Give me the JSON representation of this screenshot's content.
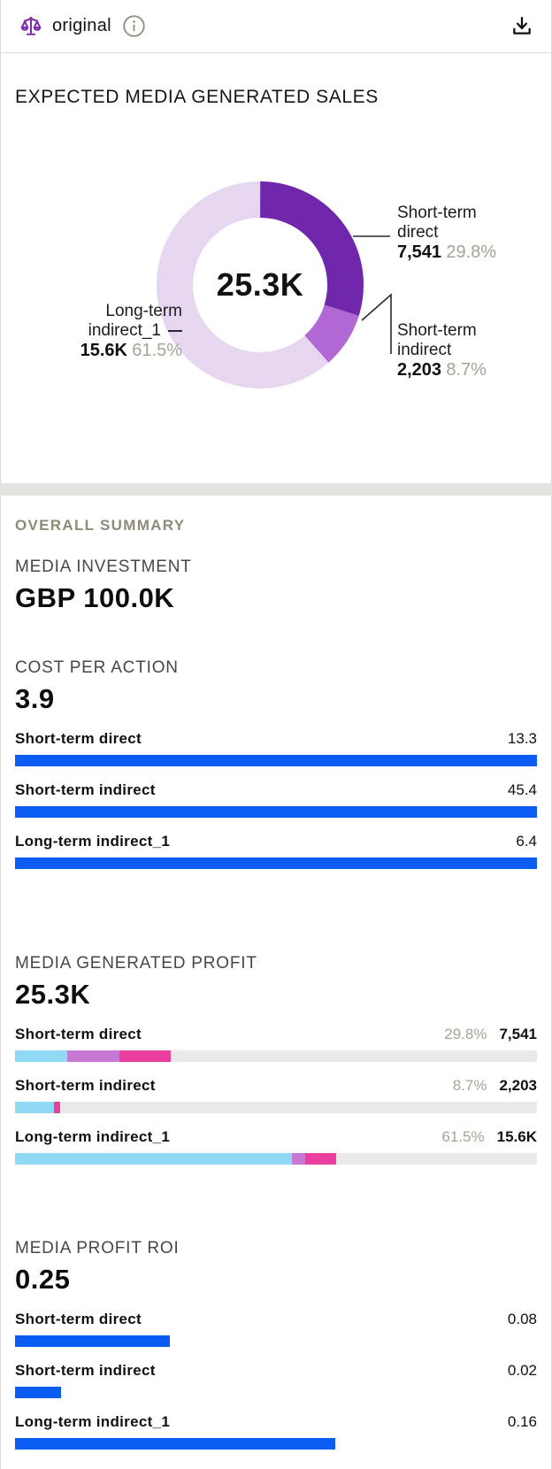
{
  "colors": {
    "accentBlue": "#0b5cf2",
    "sky": "#8fd9f5",
    "orchid": "#c678d2",
    "magenta": "#ea3f9f",
    "donutDirect": "#7127ab",
    "donutIndirect": "#b168d4",
    "donutLong": "#e6d6f0",
    "track": "#e9e9e9",
    "muted": "#a5a396",
    "heading": "#474747",
    "summaryHeading": "#8d8b76",
    "iconPurple": "#7a2ea8"
  },
  "header": {
    "title": "original"
  },
  "chart_card": {
    "title": "EXPECTED MEDIA GENERATED SALES",
    "center_label": "25.3K"
  },
  "chart_data": [
    {
      "type": "pie",
      "variant": "donut",
      "title": "EXPECTED MEDIA GENERATED SALES",
      "center_label": "25.3K",
      "legend_position": "callouts",
      "slices": [
        {
          "label": "Short-term direct",
          "value": 7541,
          "value_label": "7,541",
          "pct": 29.8,
          "pct_label": "29.8%",
          "color": "#7127ab"
        },
        {
          "label": "Short-term indirect",
          "value": 2203,
          "value_label": "2,203",
          "pct": 8.7,
          "pct_label": "8.7%",
          "color": "#b168d4"
        },
        {
          "label": "Long-term indirect_1",
          "value": 15600,
          "value_label": "15.6K",
          "pct": 61.5,
          "pct_label": "61.5%",
          "color": "#e6d6f0"
        }
      ]
    },
    {
      "type": "bar",
      "title": "COST PER ACTION",
      "total": 3.9,
      "categories": [
        "Short-term direct",
        "Short-term indirect",
        "Long-term indirect_1"
      ],
      "values": [
        13.3,
        45.4,
        6.4
      ]
    },
    {
      "type": "bar",
      "title": "MEDIA GENERATED PROFIT",
      "total": "25.3K",
      "categories": [
        "Short-term direct",
        "Short-term indirect",
        "Long-term indirect_1"
      ],
      "values": [
        7541,
        2203,
        15600
      ],
      "pcts": [
        29.8,
        8.7,
        61.5
      ]
    },
    {
      "type": "bar",
      "title": "MEDIA PROFIT ROI",
      "total": 0.25,
      "categories": [
        "Short-term direct",
        "Short-term indirect",
        "Long-term indirect_1"
      ],
      "values": [
        0.08,
        0.02,
        0.16
      ]
    }
  ],
  "donut_labels": {
    "direct": {
      "line1": "Short-term",
      "line2": "direct",
      "value": "7,541",
      "pct": "29.8%"
    },
    "indirect": {
      "line1": "Short-term",
      "line2": "indirect",
      "value": "2,203",
      "pct": "8.7%"
    },
    "long": {
      "line1": "Long-term",
      "line2": "indirect_1",
      "value": "15.6K",
      "pct": "61.5%"
    }
  },
  "summary": {
    "title": "OVERALL SUMMARY",
    "media_investment": {
      "label": "MEDIA INVESTMENT",
      "value": "GBP 100.0K"
    },
    "cost_per_action": {
      "label": "COST PER ACTION",
      "total": "3.9",
      "rows": [
        {
          "label": "Short-term direct",
          "value": "13.3",
          "bar_pct": 100
        },
        {
          "label": "Short-term indirect",
          "value": "45.4",
          "bar_pct": 100
        },
        {
          "label": "Long-term indirect_1",
          "value": "6.4",
          "bar_pct": 100
        }
      ]
    },
    "media_generated_profit": {
      "label": "MEDIA GENERATED PROFIT",
      "total": "25.3K",
      "rows": [
        {
          "label": "Short-term direct",
          "pct": "29.8%",
          "value": "7,541",
          "segments": {
            "sky": 10,
            "orchid": 10,
            "magenta": 9.8
          }
        },
        {
          "label": "Short-term indirect",
          "pct": "8.7%",
          "value": "2,203",
          "segments": {
            "sky": 7.5,
            "orchid": 0,
            "magenta": 1.2
          }
        },
        {
          "label": "Long-term indirect_1",
          "pct": "61.5%",
          "value": "15.6K",
          "segments": {
            "sky": 53,
            "orchid": 2.6,
            "magenta": 5.9
          }
        }
      ]
    },
    "media_profit_roi": {
      "label": "MEDIA PROFIT ROI",
      "total": "0.25",
      "rows": [
        {
          "label": "Short-term direct",
          "value": "0.08",
          "bar_pct": 29.7
        },
        {
          "label": "Short-term indirect",
          "value": "0.02",
          "bar_pct": 8.8
        },
        {
          "label": "Long-term indirect_1",
          "value": "0.16",
          "bar_pct": 61.4
        }
      ]
    }
  }
}
